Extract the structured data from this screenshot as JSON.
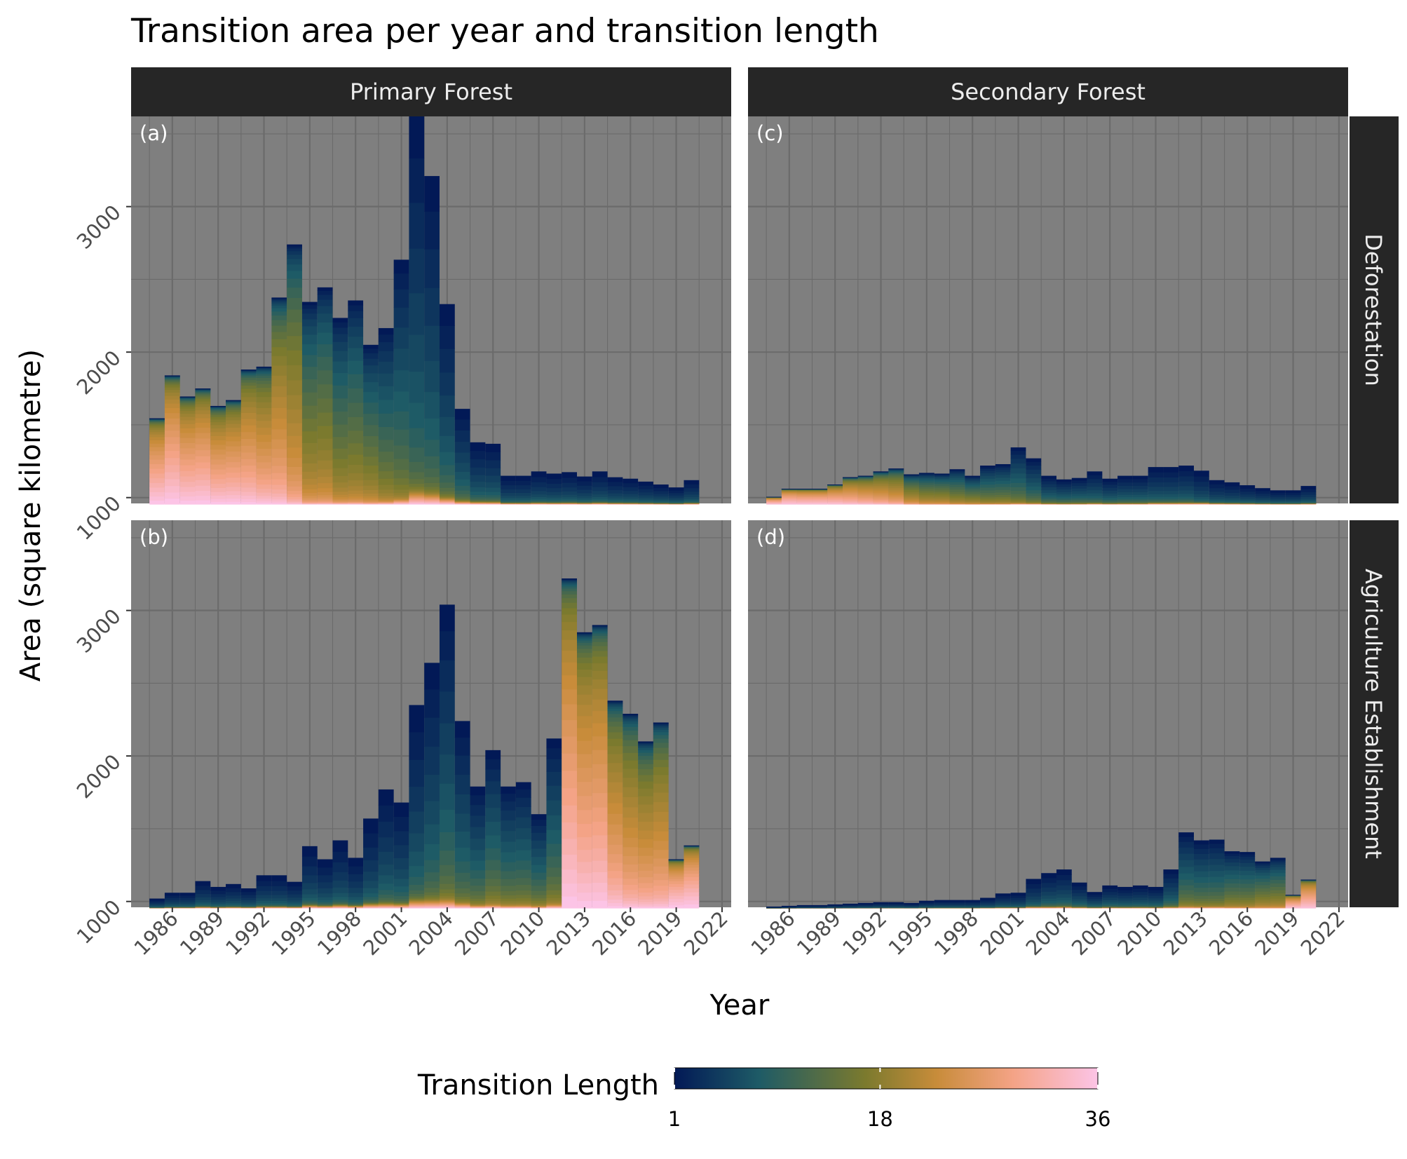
{
  "chart_data": {
    "type": "bar",
    "stacked": true,
    "title": "Transition area per year and transition length",
    "xlabel": "Year",
    "ylabel": "Area (square kilometre)",
    "x_ticks": [
      1986,
      1989,
      1992,
      1995,
      1998,
      2001,
      2004,
      2007,
      2010,
      2013,
      2016,
      2019,
      2022
    ],
    "y_ticks": [
      1000,
      2000,
      3000
    ],
    "ylim": [
      960,
      3620
    ],
    "xlim": [
      1983.3,
      2022.6
    ],
    "facet_columns": [
      "Primary Forest",
      "Secondary Forest"
    ],
    "facet_rows": [
      "Deforestation",
      "Agriculture Establishment"
    ],
    "panel_tags": [
      "(a)",
      "(b)",
      "(c)",
      "(d)"
    ],
    "fill_scale": {
      "title": "Transition Length",
      "min": 1,
      "max": 36,
      "ticks": [
        1,
        18,
        36
      ],
      "colors": [
        "#021956",
        "#1e5b66",
        "#7b7a2e",
        "#c88c3a",
        "#f4a386",
        "#fcc4e6"
      ]
    },
    "gridlines": true,
    "legend_position": "bottom",
    "panels": [
      {
        "tag": "(a)",
        "column": "Primary Forest",
        "row": "Deforestation",
        "max_length": 36,
        "years": [
          1985,
          1986,
          1987,
          1988,
          1989,
          1990,
          1991,
          1992,
          1993,
          1994,
          1995,
          1996,
          1997,
          1998,
          1999,
          2000,
          2001,
          2002,
          2003,
          2004,
          2005,
          2006,
          2007,
          2008,
          2009,
          2010,
          2011,
          2012,
          2013,
          2014,
          2015,
          2016,
          2017,
          2018,
          2019,
          2020
        ],
        "totals": [
          1545,
          1840,
          1695,
          1750,
          1630,
          1670,
          1880,
          1900,
          2375,
          2740,
          2345,
          2445,
          2235,
          2355,
          2050,
          2165,
          2635,
          3620,
          3210,
          2330,
          1610,
          1380,
          1370,
          1150,
          1150,
          1180,
          1165,
          1175,
          1145,
          1180,
          1140,
          1130,
          1110,
          1090,
          1070,
          1120
        ],
        "dominant_length": [
          30,
          30,
          28,
          28,
          26,
          26,
          24,
          22,
          20,
          16,
          12,
          12,
          10,
          10,
          10,
          8,
          6,
          3,
          3,
          3,
          3,
          2,
          2,
          1,
          1,
          1,
          1,
          1,
          1,
          1,
          1,
          1,
          1,
          1,
          1,
          1
        ]
      },
      {
        "tag": "(b)",
        "column": "Primary Forest",
        "row": "Agriculture Establishment",
        "max_length": 36,
        "years": [
          1985,
          1986,
          1987,
          1988,
          1989,
          1990,
          1991,
          1992,
          1993,
          1994,
          1995,
          1996,
          1997,
          1998,
          1999,
          2000,
          2001,
          2002,
          2003,
          2004,
          2005,
          2006,
          2007,
          2008,
          2009,
          2010,
          2011,
          2012,
          2013,
          2014,
          2015,
          2016,
          2017,
          2018,
          2019,
          2020
        ],
        "totals": [
          1020,
          1060,
          1060,
          1140,
          1100,
          1120,
          1090,
          1180,
          1180,
          1135,
          1380,
          1290,
          1420,
          1300,
          1570,
          1770,
          1680,
          2350,
          2640,
          3040,
          2240,
          1790,
          2040,
          1790,
          1820,
          1600,
          2120,
          3220,
          2850,
          2900,
          2380,
          2290,
          2100,
          2230,
          1290,
          1385
        ],
        "dominant_length": [
          1,
          1,
          1,
          1,
          1,
          1,
          1,
          1,
          1,
          1,
          1,
          1,
          1,
          1,
          1,
          2,
          2,
          2,
          3,
          4,
          4,
          5,
          6,
          6,
          6,
          6,
          6,
          28,
          26,
          26,
          22,
          20,
          20,
          20,
          34,
          34
        ]
      },
      {
        "tag": "(c)",
        "column": "Secondary Forest",
        "row": "Deforestation",
        "max_length": 35,
        "years": [
          1985,
          1986,
          1987,
          1988,
          1989,
          1990,
          1991,
          1992,
          1993,
          1994,
          1995,
          1996,
          1997,
          1998,
          1999,
          2000,
          2001,
          2002,
          2003,
          2004,
          2005,
          2006,
          2007,
          2008,
          2009,
          2010,
          2011,
          2012,
          2013,
          2014,
          2015,
          2016,
          2017,
          2018,
          2019,
          2020
        ],
        "totals": [
          1005,
          1060,
          1060,
          1060,
          1090,
          1140,
          1150,
          1180,
          1200,
          1160,
          1170,
          1165,
          1195,
          1150,
          1220,
          1230,
          1345,
          1270,
          1150,
          1125,
          1135,
          1180,
          1130,
          1150,
          1150,
          1210,
          1210,
          1220,
          1185,
          1120,
          1105,
          1085,
          1065,
          1050,
          1050,
          1080
        ],
        "dominant_length": [
          34,
          34,
          32,
          32,
          28,
          24,
          22,
          20,
          18,
          14,
          12,
          12,
          10,
          10,
          8,
          8,
          6,
          5,
          4,
          4,
          4,
          3,
          3,
          3,
          3,
          2,
          2,
          2,
          1,
          1,
          1,
          1,
          1,
          1,
          1,
          1
        ]
      },
      {
        "tag": "(d)",
        "column": "Secondary Forest",
        "row": "Agriculture Establishment",
        "max_length": 35,
        "years": [
          1985,
          1986,
          1987,
          1988,
          1989,
          1990,
          1991,
          1992,
          1993,
          1994,
          1995,
          1996,
          1997,
          1998,
          1999,
          2000,
          2001,
          2002,
          2003,
          2004,
          2005,
          2006,
          2007,
          2008,
          2009,
          2010,
          2011,
          2012,
          2013,
          2014,
          2015,
          2016,
          2017,
          2018,
          2019,
          2020
        ],
        "totals": [
          965,
          970,
          975,
          975,
          980,
          985,
          990,
          995,
          995,
          990,
          1005,
          1010,
          1010,
          1010,
          1025,
          1055,
          1060,
          1155,
          1195,
          1220,
          1130,
          1065,
          1110,
          1100,
          1110,
          1100,
          1220,
          1475,
          1420,
          1425,
          1345,
          1340,
          1275,
          1300,
          1045,
          1150
        ],
        "dominant_length": [
          1,
          1,
          1,
          1,
          1,
          1,
          1,
          1,
          1,
          1,
          1,
          1,
          1,
          1,
          1,
          1,
          1,
          1,
          2,
          2,
          2,
          2,
          2,
          2,
          2,
          2,
          3,
          6,
          6,
          6,
          8,
          8,
          10,
          10,
          30,
          30
        ]
      }
    ]
  }
}
